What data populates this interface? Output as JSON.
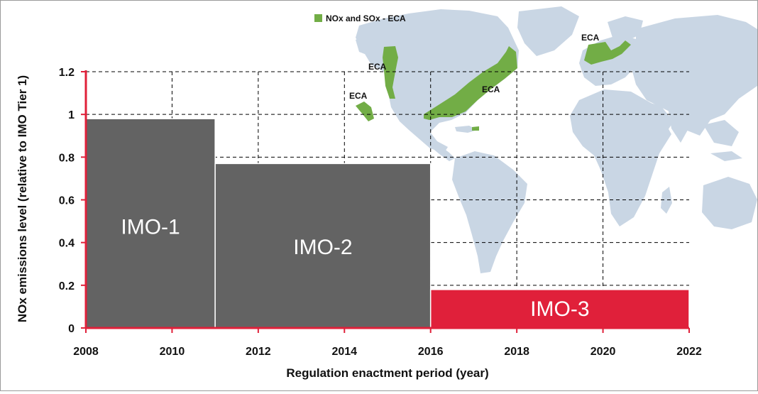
{
  "chart_data": {
    "type": "bar",
    "xlabel": "Regulation enactment period (year)",
    "ylabel": "NOx emissions level (relative to IMO Tier 1)",
    "xlim": [
      2008,
      2022
    ],
    "ylim": [
      0,
      1.2
    ],
    "x_ticks": [
      "2008",
      "2010",
      "2012",
      "2014",
      "2016",
      "2018",
      "2020",
      "2022"
    ],
    "y_ticks": [
      "0",
      "0.2",
      "0.4",
      "0.6",
      "0.8",
      "1",
      "1.2"
    ],
    "grid": "dashed",
    "bars": [
      {
        "label": "IMO-1",
        "x_start": 2008,
        "x_end": 2011,
        "value": 0.98,
        "color": "#636363"
      },
      {
        "label": "IMO-2",
        "x_start": 2011,
        "x_end": 2016,
        "value": 0.77,
        "color": "#636363"
      },
      {
        "label": "IMO-3",
        "x_start": 2016,
        "x_end": 2022,
        "value": 0.18,
        "color": "#e0203a"
      }
    ],
    "axis_color": "#e0203a"
  },
  "map": {
    "legend": "NOx and SOx - ECA",
    "legend_color": "#72ad46",
    "land_color": "#c9d6e4",
    "eca_labels": [
      "ECA",
      "ECA",
      "ECA",
      "ECA"
    ]
  }
}
